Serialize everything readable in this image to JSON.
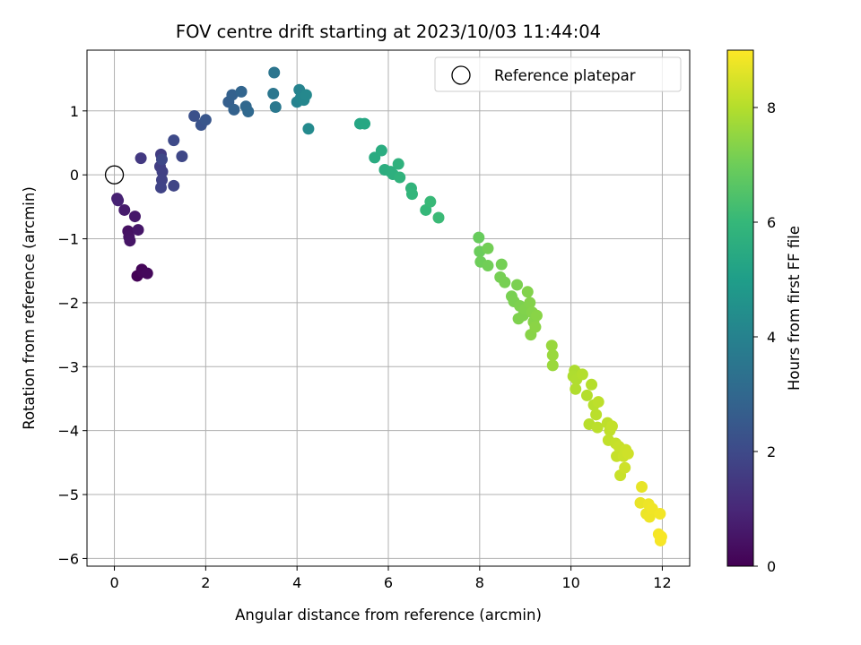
{
  "chart_data": {
    "type": "scatter",
    "title": "FOV centre drift starting at 2023/10/03 11:44:04",
    "xlabel": "Angular distance from reference (arcmin)",
    "ylabel": "Rotation from reference (arcmin)",
    "xlim": [
      -0.6,
      12.6
    ],
    "ylim": [
      -6.12,
      1.95
    ],
    "xticks": [
      0,
      2,
      4,
      6,
      8,
      10,
      12
    ],
    "yticks": [
      -6,
      -5,
      -4,
      -3,
      -2,
      -1,
      0,
      1
    ],
    "grid": true,
    "legend": {
      "placement": "top-right",
      "entries": [
        "Reference platepar"
      ]
    },
    "reference_point": {
      "x": 0,
      "y": 0,
      "label": "Reference platepar"
    },
    "colorbar": {
      "label": "Hours from first FF file",
      "range": [
        0,
        9
      ],
      "ticks": [
        0,
        2,
        4,
        6,
        8
      ],
      "colormap": "viridis"
    },
    "points": [
      {
        "x": 0.5,
        "y": -1.58,
        "h": 0.05
      },
      {
        "x": 0.6,
        "y": -1.48,
        "h": 0.1
      },
      {
        "x": 0.62,
        "y": -1.52,
        "h": 0.15
      },
      {
        "x": 0.72,
        "y": -1.54,
        "h": 0.2
      },
      {
        "x": 0.3,
        "y": -0.88,
        "h": 0.4
      },
      {
        "x": 0.32,
        "y": -0.97,
        "h": 0.45
      },
      {
        "x": 0.34,
        "y": -1.03,
        "h": 0.5
      },
      {
        "x": 0.52,
        "y": -0.86,
        "h": 0.55
      },
      {
        "x": 0.45,
        "y": -0.65,
        "h": 0.6
      },
      {
        "x": 0.22,
        "y": -0.55,
        "h": 0.7
      },
      {
        "x": 0.06,
        "y": -0.37,
        "h": 0.8
      },
      {
        "x": 0.08,
        "y": -0.4,
        "h": 0.85
      },
      {
        "x": 0.58,
        "y": 0.26,
        "h": 1.5
      },
      {
        "x": 1.02,
        "y": 0.32,
        "h": 1.6
      },
      {
        "x": 1.0,
        "y": 0.13,
        "h": 1.65
      },
      {
        "x": 1.05,
        "y": 0.05,
        "h": 1.7
      },
      {
        "x": 1.04,
        "y": -0.08,
        "h": 1.75
      },
      {
        "x": 1.02,
        "y": -0.2,
        "h": 1.8
      },
      {
        "x": 1.3,
        "y": -0.17,
        "h": 1.85
      },
      {
        "x": 1.48,
        "y": 0.29,
        "h": 1.9
      },
      {
        "x": 1.04,
        "y": 0.24,
        "h": 1.95
      },
      {
        "x": 1.3,
        "y": 0.54,
        "h": 2.0
      },
      {
        "x": 1.75,
        "y": 0.92,
        "h": 2.2
      },
      {
        "x": 1.9,
        "y": 0.78,
        "h": 2.3
      },
      {
        "x": 2.0,
        "y": 0.86,
        "h": 2.4
      },
      {
        "x": 2.5,
        "y": 1.14,
        "h": 2.7
      },
      {
        "x": 2.58,
        "y": 1.25,
        "h": 2.75
      },
      {
        "x": 2.62,
        "y": 1.02,
        "h": 2.8
      },
      {
        "x": 2.78,
        "y": 1.3,
        "h": 2.9
      },
      {
        "x": 2.88,
        "y": 1.07,
        "h": 3.0
      },
      {
        "x": 2.93,
        "y": 0.99,
        "h": 3.05
      },
      {
        "x": 3.5,
        "y": 1.6,
        "h": 3.5
      },
      {
        "x": 3.48,
        "y": 1.27,
        "h": 3.55
      },
      {
        "x": 3.53,
        "y": 1.06,
        "h": 3.6
      },
      {
        "x": 4.0,
        "y": 1.14,
        "h": 4.0
      },
      {
        "x": 4.05,
        "y": 1.33,
        "h": 4.05
      },
      {
        "x": 4.08,
        "y": 1.2,
        "h": 4.1
      },
      {
        "x": 4.15,
        "y": 1.17,
        "h": 4.15
      },
      {
        "x": 4.2,
        "y": 1.25,
        "h": 4.2
      },
      {
        "x": 4.25,
        "y": 0.72,
        "h": 4.3
      },
      {
        "x": 5.38,
        "y": 0.8,
        "h": 5.3
      },
      {
        "x": 5.48,
        "y": 0.8,
        "h": 5.35
      },
      {
        "x": 5.7,
        "y": 0.27,
        "h": 5.5
      },
      {
        "x": 5.85,
        "y": 0.38,
        "h": 5.55
      },
      {
        "x": 5.92,
        "y": 0.08,
        "h": 5.6
      },
      {
        "x": 6.05,
        "y": 0.05,
        "h": 5.65
      },
      {
        "x": 6.1,
        "y": 0.01,
        "h": 5.7
      },
      {
        "x": 6.22,
        "y": 0.17,
        "h": 5.75
      },
      {
        "x": 6.25,
        "y": -0.04,
        "h": 5.8
      },
      {
        "x": 6.5,
        "y": -0.21,
        "h": 5.85
      },
      {
        "x": 6.52,
        "y": -0.3,
        "h": 5.9
      },
      {
        "x": 6.82,
        "y": -0.55,
        "h": 6.0
      },
      {
        "x": 6.92,
        "y": -0.42,
        "h": 6.05
      },
      {
        "x": 7.1,
        "y": -0.67,
        "h": 6.1
      },
      {
        "x": 7.98,
        "y": -0.98,
        "h": 6.9
      },
      {
        "x": 8.0,
        "y": -1.2,
        "h": 6.95
      },
      {
        "x": 8.02,
        "y": -1.36,
        "h": 7.0
      },
      {
        "x": 8.18,
        "y": -1.42,
        "h": 7.05
      },
      {
        "x": 8.18,
        "y": -1.15,
        "h": 7.08
      },
      {
        "x": 8.48,
        "y": -1.4,
        "h": 7.1
      },
      {
        "x": 8.45,
        "y": -1.6,
        "h": 7.12
      },
      {
        "x": 8.55,
        "y": -1.68,
        "h": 7.14
      },
      {
        "x": 8.7,
        "y": -1.9,
        "h": 7.16
      },
      {
        "x": 8.75,
        "y": -1.98,
        "h": 7.18
      },
      {
        "x": 8.82,
        "y": -1.72,
        "h": 7.2
      },
      {
        "x": 8.88,
        "y": -2.05,
        "h": 7.22
      },
      {
        "x": 8.85,
        "y": -2.25,
        "h": 7.24
      },
      {
        "x": 8.95,
        "y": -2.2,
        "h": 7.26
      },
      {
        "x": 9.0,
        "y": -2.1,
        "h": 7.28
      },
      {
        "x": 9.05,
        "y": -1.83,
        "h": 7.3
      },
      {
        "x": 9.1,
        "y": -2.0,
        "h": 7.32
      },
      {
        "x": 9.15,
        "y": -2.15,
        "h": 7.34
      },
      {
        "x": 9.18,
        "y": -2.3,
        "h": 7.36
      },
      {
        "x": 9.12,
        "y": -2.5,
        "h": 7.38
      },
      {
        "x": 9.25,
        "y": -2.2,
        "h": 7.4
      },
      {
        "x": 9.22,
        "y": -2.38,
        "h": 7.42
      },
      {
        "x": 9.58,
        "y": -2.67,
        "h": 7.6
      },
      {
        "x": 9.6,
        "y": -2.82,
        "h": 7.62
      },
      {
        "x": 9.6,
        "y": -2.98,
        "h": 7.64
      },
      {
        "x": 10.08,
        "y": -3.06,
        "h": 7.9
      },
      {
        "x": 10.05,
        "y": -3.15,
        "h": 7.92
      },
      {
        "x": 10.12,
        "y": -3.2,
        "h": 7.94
      },
      {
        "x": 10.1,
        "y": -3.35,
        "h": 7.96
      },
      {
        "x": 10.25,
        "y": -3.12,
        "h": 7.98
      },
      {
        "x": 10.35,
        "y": -3.45,
        "h": 8.0
      },
      {
        "x": 10.45,
        "y": -3.28,
        "h": 8.02
      },
      {
        "x": 10.4,
        "y": -3.9,
        "h": 8.04
      },
      {
        "x": 10.5,
        "y": -3.6,
        "h": 8.06
      },
      {
        "x": 10.55,
        "y": -3.75,
        "h": 8.08
      },
      {
        "x": 10.58,
        "y": -3.95,
        "h": 8.1
      },
      {
        "x": 10.6,
        "y": -3.55,
        "h": 8.12
      },
      {
        "x": 10.8,
        "y": -3.88,
        "h": 8.14
      },
      {
        "x": 10.85,
        "y": -4.0,
        "h": 8.16
      },
      {
        "x": 10.82,
        "y": -4.15,
        "h": 8.18
      },
      {
        "x": 10.9,
        "y": -3.93,
        "h": 8.2
      },
      {
        "x": 10.98,
        "y": -4.2,
        "h": 8.22
      },
      {
        "x": 11.0,
        "y": -4.4,
        "h": 8.24
      },
      {
        "x": 11.05,
        "y": -4.25,
        "h": 8.26
      },
      {
        "x": 11.08,
        "y": -4.7,
        "h": 8.28
      },
      {
        "x": 11.15,
        "y": -4.4,
        "h": 8.3
      },
      {
        "x": 11.2,
        "y": -4.3,
        "h": 8.32
      },
      {
        "x": 11.18,
        "y": -4.58,
        "h": 8.34
      },
      {
        "x": 11.25,
        "y": -4.36,
        "h": 8.36
      },
      {
        "x": 11.55,
        "y": -4.88,
        "h": 8.7
      },
      {
        "x": 11.52,
        "y": -5.13,
        "h": 8.72
      },
      {
        "x": 11.65,
        "y": -5.3,
        "h": 8.75
      },
      {
        "x": 11.7,
        "y": -5.15,
        "h": 8.78
      },
      {
        "x": 11.72,
        "y": -5.35,
        "h": 8.8
      },
      {
        "x": 11.78,
        "y": -5.22,
        "h": 8.82
      },
      {
        "x": 11.95,
        "y": -5.3,
        "h": 8.85
      },
      {
        "x": 11.92,
        "y": -5.62,
        "h": 8.88
      },
      {
        "x": 11.96,
        "y": -5.72,
        "h": 8.9
      },
      {
        "x": 11.98,
        "y": -5.66,
        "h": 8.92
      }
    ]
  }
}
